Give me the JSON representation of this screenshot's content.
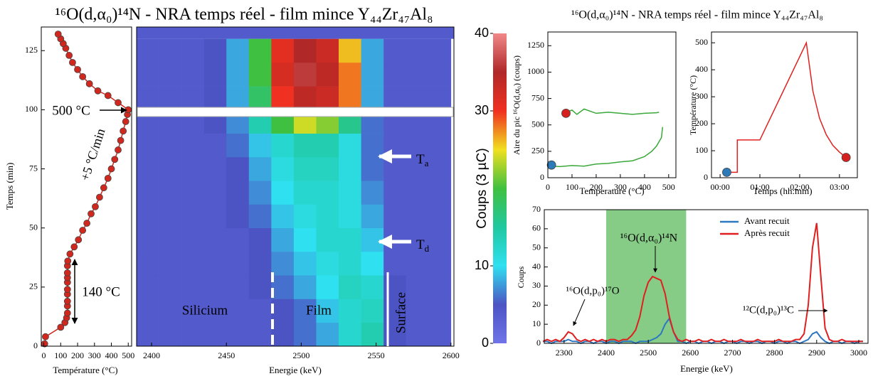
{
  "chart_data": [
    {
      "type": "line",
      "x_label": "Température (°C)",
      "y_label": "Temps (min)",
      "xlim": [
        -15,
        520
      ],
      "xticks": [
        0,
        100,
        200,
        300,
        400,
        500
      ],
      "ylim": [
        0,
        135
      ],
      "yticks": [
        0,
        25,
        50,
        75,
        100,
        125
      ],
      "series": [
        {
          "color": "#d0281e",
          "mode": "lines+markers",
          "x": [
            5,
            10,
            100,
            125,
            135,
            140,
            140,
            140,
            140,
            140,
            140,
            140,
            140,
            140,
            142,
            155,
            180,
            205,
            230,
            255,
            280,
            305,
            330,
            355,
            380,
            400,
            420,
            440,
            455,
            470,
            485,
            495,
            500,
            440,
            380,
            320,
            270,
            230,
            200,
            170,
            150,
            130,
            115,
            100,
            85
          ],
          "values": [
            1,
            4,
            8,
            10,
            12,
            14,
            17,
            19,
            22,
            24,
            27,
            29,
            31,
            34,
            36,
            39,
            42,
            45,
            49,
            52,
            56,
            59,
            63,
            67,
            71,
            75,
            79,
            83,
            87,
            91,
            95,
            98,
            100,
            103,
            106,
            108,
            111,
            114,
            117,
            120,
            123,
            126,
            128,
            130,
            132
          ]
        }
      ],
      "annotations": [
        {
          "text": "500 °C"
        },
        {
          "text": "+5 °C/min"
        },
        {
          "text": "140 °C"
        }
      ]
    },
    {
      "type": "heatmap",
      "title": "¹⁶O(d,α₀)¹⁴N - NRA temps réel - film mince Y₄₄Zr₄₇Al₈",
      "x_label": "Energie (keV)",
      "xlim": [
        2390,
        2602
      ],
      "xticks": [
        2400,
        2450,
        2500,
        2550,
        2600
      ],
      "ylim": [
        0,
        135
      ],
      "x_bins": [
        2390,
        2405,
        2420,
        2435,
        2450,
        2465,
        2480,
        2495,
        2510,
        2525,
        2540,
        2555,
        2570,
        2585,
        2600
      ],
      "y_bins": [
        0,
        10,
        20,
        30,
        40,
        50,
        60,
        70,
        80,
        90,
        100,
        110,
        120,
        130
      ],
      "values": [
        [
          4,
          4,
          4,
          4,
          4,
          4,
          5,
          6,
          8,
          12,
          14,
          5,
          4,
          4
        ],
        [
          4,
          4,
          4,
          4,
          4,
          4,
          5,
          6,
          9,
          12,
          13,
          5,
          4,
          4
        ],
        [
          4,
          4,
          4,
          4,
          4,
          5,
          6,
          8,
          10,
          13,
          12,
          5,
          4,
          4
        ],
        [
          4,
          4,
          4,
          4,
          4,
          5,
          7,
          9,
          11,
          12,
          10,
          4,
          4,
          4
        ],
        [
          4,
          4,
          4,
          4,
          4,
          5,
          8,
          10,
          12,
          12,
          9,
          4,
          4,
          4
        ],
        [
          4,
          4,
          4,
          4,
          5,
          6,
          9,
          11,
          12,
          11,
          8,
          4,
          4,
          4
        ],
        [
          4,
          4,
          4,
          4,
          5,
          7,
          10,
          12,
          12,
          11,
          7,
          4,
          4,
          4
        ],
        [
          4,
          4,
          4,
          4,
          5,
          8,
          11,
          13,
          13,
          11,
          6,
          4,
          4,
          4
        ],
        [
          4,
          4,
          4,
          4,
          6,
          9,
          12,
          14,
          14,
          11,
          6,
          4,
          4,
          4
        ],
        [
          4,
          4,
          4,
          5,
          7,
          14,
          20,
          24,
          22,
          16,
          6,
          4,
          4,
          4
        ],
        [
          4,
          4,
          4,
          5,
          8,
          18,
          30,
          34,
          33,
          28,
          8,
          4,
          4,
          4
        ],
        [
          4,
          4,
          4,
          5,
          8,
          20,
          32,
          36,
          34,
          28,
          8,
          4,
          4,
          4
        ],
        [
          4,
          4,
          4,
          5,
          8,
          20,
          31,
          35,
          33,
          26,
          8,
          4,
          4,
          4
        ]
      ],
      "zlim": [
        0,
        40
      ],
      "zticks": [
        0,
        10,
        30,
        40
      ],
      "z_label": "Coups (3 µC)",
      "colorscale": [
        "#7074e8",
        "#4c54c4",
        "#2ee0f0",
        "#20c8a0",
        "#40c040",
        "#f0e020",
        "#f03020",
        "#b02828",
        "#f08888"
      ],
      "annotations": [
        {
          "text": "Silicium"
        },
        {
          "text": "Film"
        },
        {
          "text": "Surface"
        },
        {
          "text": "T",
          "subscript": "a"
        },
        {
          "text": "T",
          "subscript": "d"
        }
      ]
    },
    {
      "type": "line",
      "title": "¹⁶O(d,α₀)¹⁴N - NRA temps réel - film mince Y₄₄Zr₄₇Al₈",
      "x_label": "Temperature (°C)",
      "y_label": "Aire du pic ¹⁶O(d,α₀) (coups)",
      "xlim": [
        0,
        530
      ],
      "xticks": [
        0,
        100,
        200,
        300,
        400,
        500
      ],
      "ylim": [
        0,
        1380
      ],
      "yticks": [
        0,
        250,
        500,
        750,
        1000,
        1250
      ],
      "series": [
        {
          "color": "#3aa83a",
          "mode": "lines",
          "x": [
            20,
            50,
            100,
            150,
            200,
            250,
            300,
            350,
            400,
            430,
            450,
            470,
            475
          ],
          "values": [
            110,
            105,
            115,
            110,
            130,
            135,
            150,
            160,
            200,
            250,
            300,
            380,
            480
          ]
        },
        {
          "color": "#3aa83a",
          "mode": "lines",
          "x": [
            75,
            100,
            120,
            150,
            200,
            250,
            300,
            350,
            400,
            450,
            460
          ],
          "values": [
            620,
            640,
            600,
            650,
            610,
            620,
            610,
            600,
            610,
            615,
            620
          ]
        },
        {
          "color": "#d62020",
          "mode": "markers",
          "x": [
            75
          ],
          "values": [
            610
          ]
        },
        {
          "color": "#2d7ab8",
          "mode": "markers",
          "x": [
            15
          ],
          "values": [
            120
          ]
        }
      ]
    },
    {
      "type": "line",
      "x_label": "Temps (hh:mm)",
      "y_label": "Température (°C)",
      "xlim": [
        -13,
        207
      ],
      "xticks": [
        {
          "value": 0,
          "label": "00:00"
        },
        {
          "value": 60,
          "label": "01:00"
        },
        {
          "value": 120,
          "label": "02:00"
        },
        {
          "value": 180,
          "label": "03:00"
        }
      ],
      "ylim": [
        0,
        540
      ],
      "yticks": [
        0,
        100,
        200,
        300,
        400,
        500
      ],
      "series": [
        {
          "color": "#e02020",
          "mode": "lines",
          "x": [
            10,
            26,
            26,
            60,
            130,
            140,
            150,
            160,
            170,
            180,
            190
          ],
          "values": [
            20,
            20,
            140,
            140,
            500,
            320,
            220,
            160,
            120,
            95,
            75
          ]
        },
        {
          "color": "#2d7ab8",
          "mode": "markers",
          "x": [
            10
          ],
          "values": [
            20
          ]
        },
        {
          "color": "#d62020",
          "mode": "markers",
          "x": [
            190
          ],
          "values": [
            75
          ]
        }
      ]
    },
    {
      "type": "line",
      "x_label": "Energie (keV)",
      "y_label": "Coups",
      "xlim": [
        2253,
        3022
      ],
      "xticks": [
        2300,
        2400,
        2500,
        2600,
        2700,
        2800,
        2900,
        3000
      ],
      "ylim": [
        0,
        70
      ],
      "yticks": [
        0,
        10,
        20,
        30,
        40,
        50,
        60,
        70
      ],
      "span": [
        2400,
        2590
      ],
      "span_color": "#86cc86",
      "legend": "upper center",
      "x": [
        2250,
        2260,
        2270,
        2280,
        2290,
        2300,
        2310,
        2320,
        2330,
        2340,
        2350,
        2360,
        2370,
        2380,
        2390,
        2400,
        2410,
        2420,
        2430,
        2440,
        2450,
        2460,
        2470,
        2480,
        2490,
        2500,
        2510,
        2520,
        2530,
        2540,
        2550,
        2560,
        2570,
        2580,
        2590,
        2600,
        2610,
        2620,
        2630,
        2640,
        2650,
        2660,
        2670,
        2680,
        2690,
        2700,
        2710,
        2720,
        2730,
        2740,
        2750,
        2760,
        2770,
        2780,
        2790,
        2800,
        2810,
        2820,
        2830,
        2840,
        2850,
        2860,
        2870,
        2880,
        2890,
        2900,
        2910,
        2920,
        2930,
        2940,
        2950,
        2960,
        2970,
        2980,
        2990,
        3000,
        3010
      ],
      "series": [
        {
          "name": "Avant recuit",
          "color": "#2e78c0",
          "mode": "lines",
          "values": [
            1,
            1,
            0,
            1,
            1,
            1,
            2,
            1,
            1,
            0,
            1,
            1,
            0,
            1,
            1,
            0,
            1,
            1,
            0,
            1,
            1,
            1,
            0,
            1,
            1,
            1,
            2,
            3,
            5,
            10,
            13,
            6,
            1,
            1,
            0,
            1,
            1,
            0,
            1,
            1,
            0,
            1,
            1,
            0,
            1,
            1,
            0,
            1,
            1,
            0,
            1,
            1,
            0,
            1,
            1,
            0,
            1,
            1,
            0,
            1,
            1,
            0,
            1,
            2,
            5,
            6,
            3,
            1,
            0,
            1,
            1,
            0,
            1,
            1,
            0,
            1,
            1
          ]
        },
        {
          "name": "Après recuit",
          "color": "#e02020",
          "mode": "lines",
          "values": [
            1,
            2,
            1,
            2,
            1,
            3,
            6,
            5,
            2,
            1,
            2,
            1,
            2,
            1,
            2,
            1,
            2,
            2,
            1,
            2,
            2,
            4,
            7,
            14,
            25,
            32,
            35,
            34,
            33,
            26,
            14,
            6,
            2,
            1,
            2,
            1,
            1,
            2,
            1,
            1,
            2,
            1,
            1,
            2,
            1,
            1,
            1,
            2,
            1,
            1,
            1,
            2,
            1,
            1,
            1,
            1,
            2,
            1,
            1,
            1,
            2,
            2,
            5,
            20,
            50,
            63,
            35,
            8,
            2,
            1,
            1,
            2,
            1,
            1,
            1,
            1,
            1
          ]
        }
      ],
      "annotations": [
        {
          "text": "¹⁶O(d,p₀)¹⁷O"
        },
        {
          "text": "¹⁶O(d,α₀)¹⁴N"
        },
        {
          "text": "¹²C(d,p₀)¹³C"
        }
      ]
    }
  ]
}
